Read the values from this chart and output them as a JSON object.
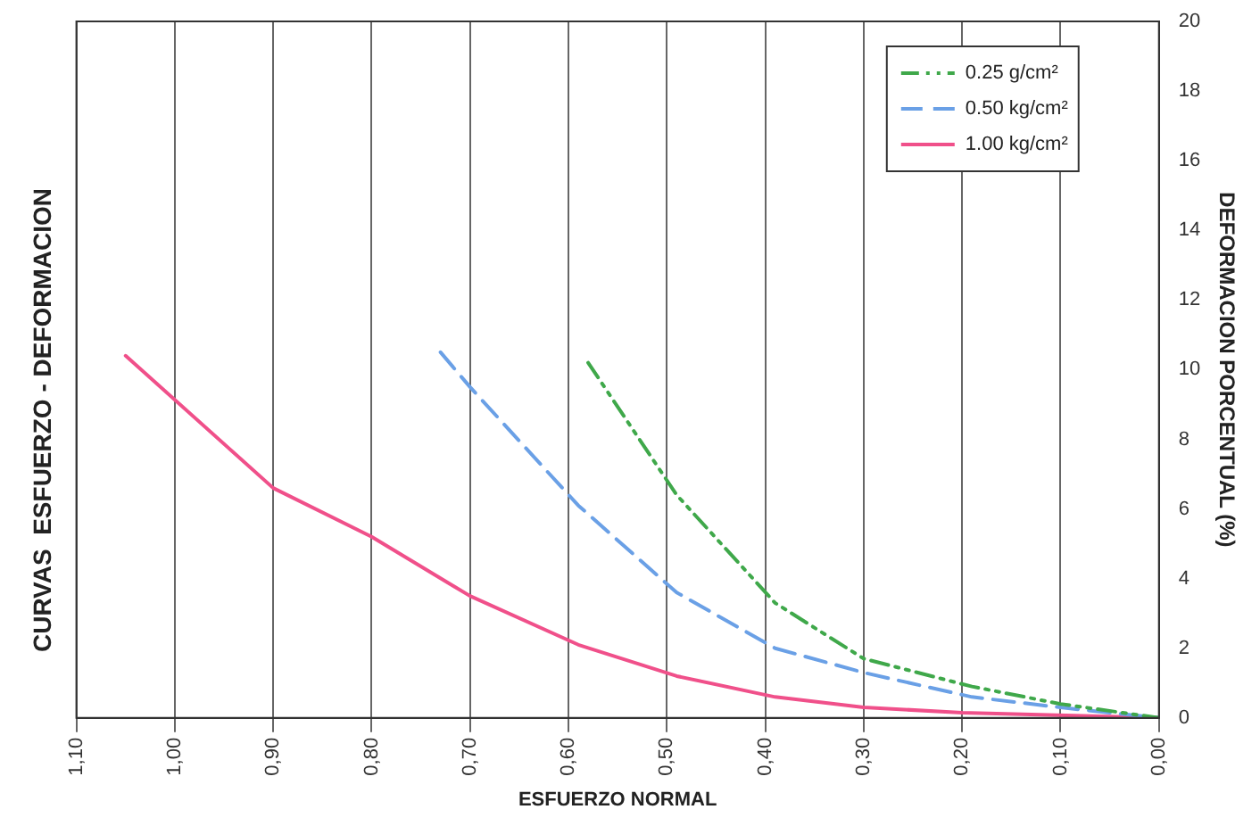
{
  "chart_data": {
    "type": "line",
    "title": "CURVAS  ESFUERZO - DEFORMACION",
    "xlabel": "ESFUERZO NORMAL",
    "ylabel": "DEFORMACION PORCENTUAL (%)",
    "xlim": [
      1.1,
      0
    ],
    "xticks": [
      {
        "value": 1.1,
        "label": "1,10"
      },
      {
        "value": 1.0,
        "label": "1,00"
      },
      {
        "value": 0.9,
        "label": "0,90"
      },
      {
        "value": 0.8,
        "label": "0,80"
      },
      {
        "value": 0.7,
        "label": "0,70"
      },
      {
        "value": 0.6,
        "label": "0,60"
      },
      {
        "value": 0.5,
        "label": "0,50"
      },
      {
        "value": 0.4,
        "label": "0,40"
      },
      {
        "value": 0.3,
        "label": "0,30"
      },
      {
        "value": 0.2,
        "label": "0,20"
      },
      {
        "value": 0.1,
        "label": "0,10"
      },
      {
        "value": 0,
        "label": "0,00"
      }
    ],
    "ylim": [
      0,
      20
    ],
    "yticks": [
      0,
      2,
      4,
      6,
      8,
      10,
      12,
      14,
      16,
      18,
      20
    ],
    "grid": "x",
    "legend": "top right",
    "marker": "none",
    "series": [
      {
        "name": "0.25 g/cm²",
        "color": "#3fa84a",
        "line_style": "dotted",
        "x": [
          0.58,
          0.49,
          0.39,
          0.3,
          0.19,
          0.1,
          0
        ],
        "values": [
          10.2,
          6.4,
          3.3,
          1.7,
          0.9,
          0.4,
          0
        ]
      },
      {
        "name": "0.50 kg/cm²",
        "color": "#6aa0e6",
        "line_style": "dashed",
        "x": [
          0.73,
          0.7,
          0.59,
          0.49,
          0.39,
          0.3,
          0.19,
          0.1,
          0
        ],
        "values": [
          10.5,
          9.5,
          6.1,
          3.6,
          2.0,
          1.3,
          0.6,
          0.3,
          0
        ]
      },
      {
        "name": "1.00 kg/cm²",
        "color": "#f0508a",
        "line_style": "solid",
        "x": [
          1.05,
          0.9,
          0.8,
          0.7,
          0.59,
          0.49,
          0.39,
          0.3,
          0.2,
          0
        ],
        "values": [
          10.4,
          6.6,
          5.2,
          3.5,
          2.1,
          1.2,
          0.6,
          0.3,
          0.15,
          0
        ]
      }
    ]
  }
}
